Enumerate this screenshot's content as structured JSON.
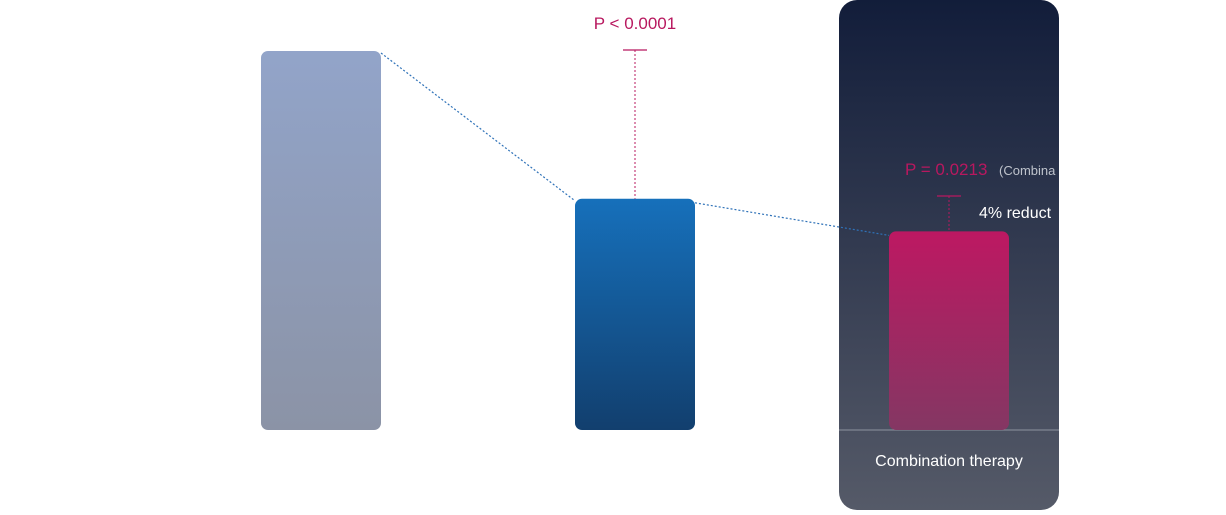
{
  "chart_data": {
    "type": "bar",
    "categories": [
      "",
      "",
      "Combination therapy"
    ],
    "values": [
      100,
      61,
      52.4
    ],
    "colors": {
      "bar1": [
        "#92a4c9",
        "#8b93a6"
      ],
      "bar2": [
        "#1670bb",
        "#123f6e"
      ],
      "bar3": [
        "#bd1862",
        "#843763"
      ],
      "highlight_panel": [
        "#121d3a",
        "#555a68"
      ],
      "annotation": "#b8185f",
      "connector": "#2f72b8"
    },
    "annotations": {
      "p_bar2": "P < 0.0001",
      "p_bar3": "P = 0.0213",
      "p_bar3_note": "(Combina",
      "reduction": "4% reduct"
    },
    "highlighted_category": "Combination therapy",
    "grid": false,
    "legend": "none"
  }
}
